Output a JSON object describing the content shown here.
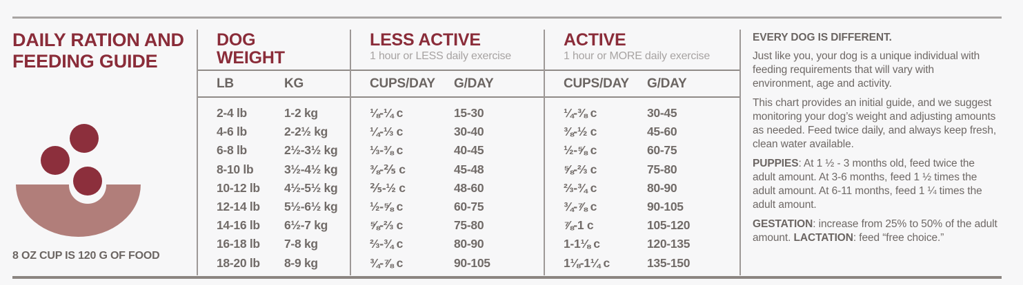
{
  "accent_color": "#8a2c39",
  "bowl_color": "#b17e7a",
  "kibble_color": "#8c2f3c",
  "title": {
    "line1": "DAILY RATION AND",
    "line2": "FEEDING GUIDE"
  },
  "cup_note": "8 OZ CUP IS 120 G OF FOOD",
  "icons": {
    "bowl": "food-bowl-with-kibble-icon"
  },
  "table": {
    "weight": {
      "title_line1": "DOG",
      "title_line2": "WEIGHT",
      "cols": [
        "LB",
        "KG"
      ]
    },
    "less_active": {
      "title": "LESS ACTIVE",
      "subtitle": "1 hour or LESS daily exercise",
      "cols": [
        "CUPS/DAY",
        "G/DAY"
      ]
    },
    "active": {
      "title": "ACTIVE",
      "subtitle": "1 hour or MORE daily exercise",
      "cols": [
        "CUPS/DAY",
        "G/DAY"
      ]
    },
    "rows": [
      {
        "lb": "2-4 lb",
        "kg": "1-2 kg",
        "la_cups": "⅛-¼ c",
        "la_g": "15-30",
        "a_cups": "¼-⅜ c",
        "a_g": "30-45"
      },
      {
        "lb": "4-6 lb",
        "kg": "2-2½ kg",
        "la_cups": "¼-⅓ c",
        "la_g": "30-40",
        "a_cups": "⅜-½ c",
        "a_g": "45-60"
      },
      {
        "lb": "6-8 lb",
        "kg": "2½-3½ kg",
        "la_cups": "⅓-⅜ c",
        "la_g": "40-45",
        "a_cups": "½-⅝ c",
        "a_g": "60-75"
      },
      {
        "lb": "8-10 lb",
        "kg": "3½-4½ kg",
        "la_cups": "⅜-⅖ c",
        "la_g": "45-48",
        "a_cups": "⅝-⅔ c",
        "a_g": "75-80"
      },
      {
        "lb": "10-12 lb",
        "kg": "4½-5½ kg",
        "la_cups": "⅖-½ c",
        "la_g": "48-60",
        "a_cups": "⅔-¾ c",
        "a_g": "80-90"
      },
      {
        "lb": "12-14 lb",
        "kg": "5½-6½ kg",
        "la_cups": "½-⅝ c",
        "la_g": "60-75",
        "a_cups": "¾-⅞ c",
        "a_g": "90-105"
      },
      {
        "lb": "14-16 lb",
        "kg": "6½-7 kg",
        "la_cups": "⅝-⅔ c",
        "la_g": "75-80",
        "a_cups": "⅞-1 c",
        "a_g": "105-120"
      },
      {
        "lb": "16-18 lb",
        "kg": "7-8 kg",
        "la_cups": "⅔-¾ c",
        "la_g": "80-90",
        "a_cups": "1-1⅛ c",
        "a_g": "120-135"
      },
      {
        "lb": "18-20 lb",
        "kg": "8-9 kg",
        "la_cups": "¾-⅞ c",
        "la_g": "90-105",
        "a_cups": "1⅛-1¼ c",
        "a_g": "135-150"
      }
    ]
  },
  "notes": {
    "heading": "EVERY DOG IS DIFFERENT.",
    "p1": "Just like you, your dog is a unique individual with feeding requirements that will vary with environment, age and activity.",
    "p2": "This chart provides an initial guide, and we suggest monitoring your dog’s weight and adjusting amounts as needed. Feed twice daily, and always keep fresh, clean water available.",
    "p3_lead": "PUPPIES",
    "p3_rest": ": At 1 ½ - 3 months old, feed twice the adult amount. At 3-6 months, feed 1 ½ times the adult amount. At 6-11 months, feed 1 ¼ times the adult amount.",
    "p4_lead1": "GESTATION",
    "p4_mid": ": increase from 25% to 50% of the adult amount. ",
    "p4_lead2": "LACTATION",
    "p4_rest": ": feed “free choice.”"
  }
}
